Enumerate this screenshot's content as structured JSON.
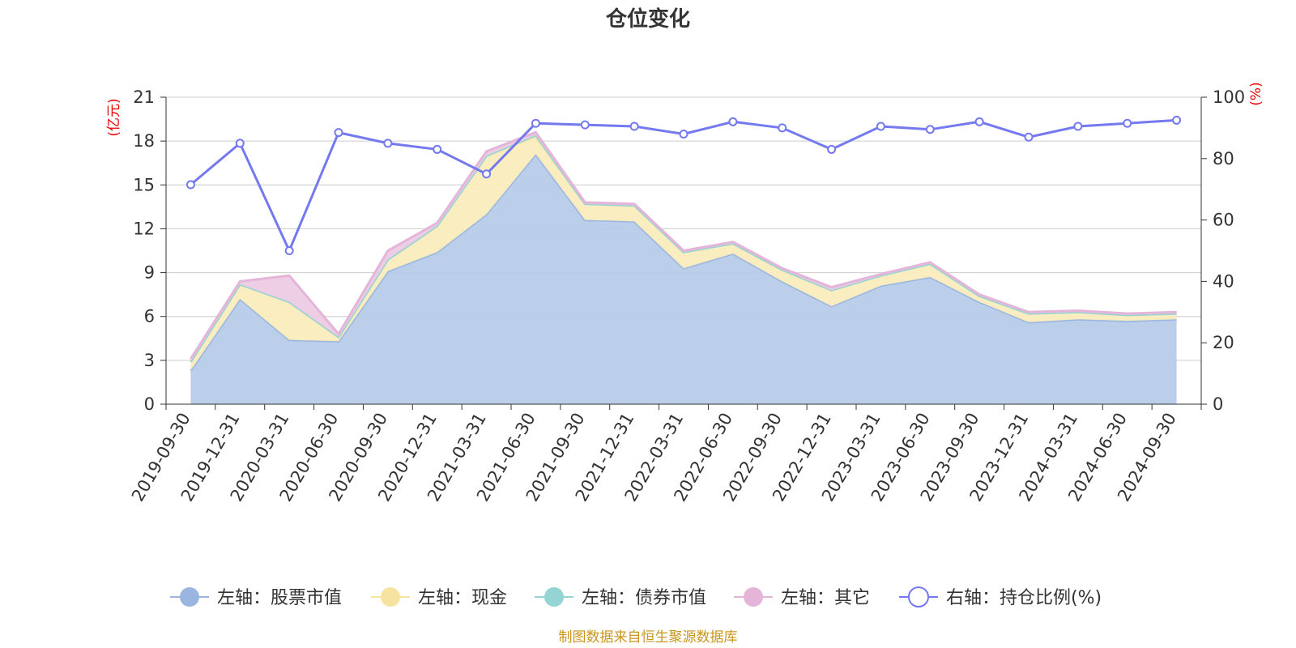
{
  "colors": {
    "stock": "#9ab6e0",
    "stock_fill": "#b7cce9",
    "cash": "#f7e3a0",
    "cash_fill": "#faecbd",
    "bond": "#94d4d4",
    "bond_fill": "#b9e3e3",
    "other": "#e4b5d9",
    "other_fill": "#eccbe4",
    "ratio": "#7479f0",
    "grid": "#cccccc",
    "axis": "#333333",
    "unit": "#e60000",
    "source": "#c8961e"
  },
  "chart_data": {
    "type": "area",
    "title": "仓位变化",
    "left_unit": "(亿元)",
    "right_unit": "(%)",
    "left_ylim": [
      0,
      21
    ],
    "left_ticks": [
      0,
      3,
      6,
      9,
      12,
      15,
      18,
      21
    ],
    "right_ylim": [
      0,
      100
    ],
    "right_ticks": [
      0,
      20,
      40,
      60,
      80,
      100
    ],
    "categories": [
      "2019-09-30",
      "2019-12-31",
      "2020-03-31",
      "2020-06-30",
      "2020-09-30",
      "2020-12-31",
      "2021-03-31",
      "2021-06-30",
      "2021-09-30",
      "2021-12-31",
      "2022-03-31",
      "2022-06-30",
      "2022-09-30",
      "2022-12-31",
      "2023-03-31",
      "2023-06-30",
      "2023-09-30",
      "2023-12-31",
      "2024-03-31",
      "2024-06-30",
      "2024-09-30"
    ],
    "stacked_series": [
      {
        "key": "stock",
        "name": "左轴：股票市值",
        "axis": "left",
        "values": [
          2.3,
          7.2,
          4.4,
          4.3,
          9.1,
          10.4,
          13.0,
          17.1,
          12.6,
          12.5,
          9.3,
          10.3,
          8.4,
          6.7,
          8.1,
          8.7,
          7.0,
          5.6,
          5.8,
          5.7,
          5.8
        ]
      },
      {
        "key": "cash",
        "name": "左轴：现金",
        "axis": "left",
        "values": [
          0.6,
          1.0,
          2.6,
          0.3,
          0.8,
          1.8,
          4.0,
          1.2,
          1.1,
          1.1,
          1.1,
          0.7,
          0.8,
          1.1,
          0.7,
          0.9,
          0.4,
          0.6,
          0.5,
          0.4,
          0.4
        ]
      },
      {
        "key": "bond",
        "name": "左轴：债券市值",
        "axis": "left",
        "values": [
          0,
          0,
          0,
          0,
          0,
          0,
          0,
          0.1,
          0,
          0,
          0,
          0,
          0,
          0,
          0,
          0,
          0,
          0,
          0,
          0,
          0
        ]
      },
      {
        "key": "other",
        "name": "左轴：其它",
        "axis": "left",
        "values": [
          0.2,
          0.2,
          1.8,
          0.2,
          0.6,
          0.2,
          0.3,
          0.2,
          0.1,
          0.1,
          0.1,
          0.1,
          0.1,
          0.2,
          0.1,
          0.1,
          0.1,
          0.1,
          0.1,
          0.1,
          0.1
        ]
      }
    ],
    "line_series": {
      "key": "ratio",
      "name": "右轴：持仓比例(%)",
      "axis": "right",
      "values": [
        71.5,
        85.0,
        50.0,
        88.5,
        85.0,
        83.0,
        75.0,
        91.5,
        91.0,
        90.5,
        88.0,
        92.0,
        90.0,
        83.0,
        90.5,
        89.5,
        92.0,
        87.0,
        90.5,
        91.5,
        92.5
      ]
    },
    "legend": [
      "左轴：股票市值",
      "左轴：现金",
      "左轴：债券市值",
      "左轴：其它",
      "右轴：持仓比例(%)"
    ],
    "legend_position": "bottom",
    "grid": true
  },
  "source_note": "制图数据来自恒生聚源数据库"
}
